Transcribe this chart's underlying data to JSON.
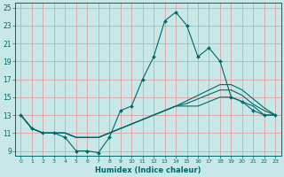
{
  "xlabel": "Humidex (Indice chaleur)",
  "background_color": "#c8e8e8",
  "grid_color": "#e0a0a0",
  "line_color": "#006868",
  "xlim": [
    -0.5,
    23.5
  ],
  "ylim": [
    8.5,
    25.5
  ],
  "xticks": [
    0,
    1,
    2,
    3,
    4,
    5,
    6,
    7,
    8,
    9,
    10,
    11,
    12,
    13,
    14,
    15,
    16,
    17,
    18,
    19,
    20,
    21,
    22,
    23
  ],
  "yticks": [
    9,
    11,
    13,
    15,
    17,
    19,
    21,
    23,
    25
  ],
  "line1_x": [
    0,
    1,
    2,
    3,
    4,
    5,
    6,
    7,
    8,
    9,
    10,
    11,
    12,
    13,
    14,
    15,
    16,
    17,
    18,
    19,
    20,
    21,
    22,
    23
  ],
  "line1_y": [
    13,
    11.5,
    11,
    11,
    10.5,
    9,
    9,
    8.8,
    10.5,
    13.5,
    14,
    17,
    19.5,
    23.5,
    24.5,
    23,
    19.5,
    20.5,
    19,
    15,
    14.5,
    13.5,
    13,
    13
  ],
  "line2_x": [
    0,
    1,
    2,
    3,
    4,
    5,
    6,
    7,
    8,
    9,
    10,
    11,
    12,
    13,
    14,
    15,
    16,
    17,
    18,
    19,
    20,
    21,
    22,
    23
  ],
  "line2_y": [
    13,
    11.5,
    11,
    11,
    11,
    10.5,
    10.5,
    10.5,
    11,
    11.5,
    12,
    12.5,
    13,
    13.5,
    14,
    14,
    14,
    14.5,
    15,
    15,
    14.5,
    14,
    13,
    13
  ],
  "line3_x": [
    0,
    1,
    2,
    3,
    4,
    5,
    6,
    7,
    8,
    9,
    10,
    11,
    12,
    13,
    14,
    15,
    16,
    17,
    18,
    19,
    20,
    21,
    22,
    23
  ],
  "line3_y": [
    13,
    11.5,
    11,
    11,
    11,
    10.5,
    10.5,
    10.5,
    11,
    11.5,
    12,
    12.5,
    13,
    13.5,
    14,
    14.3,
    14.8,
    15.3,
    15.8,
    15.8,
    15.2,
    14.2,
    13.5,
    13
  ],
  "line4_x": [
    0,
    1,
    2,
    3,
    4,
    5,
    6,
    7,
    8,
    9,
    10,
    11,
    12,
    13,
    14,
    15,
    16,
    17,
    18,
    19,
    20,
    21,
    22,
    23
  ],
  "line4_y": [
    13,
    11.5,
    11,
    11,
    11,
    10.5,
    10.5,
    10.5,
    11,
    11.5,
    12,
    12.5,
    13,
    13.5,
    14,
    14.6,
    15.2,
    15.8,
    16.4,
    16.4,
    15.8,
    14.8,
    13.8,
    13
  ]
}
